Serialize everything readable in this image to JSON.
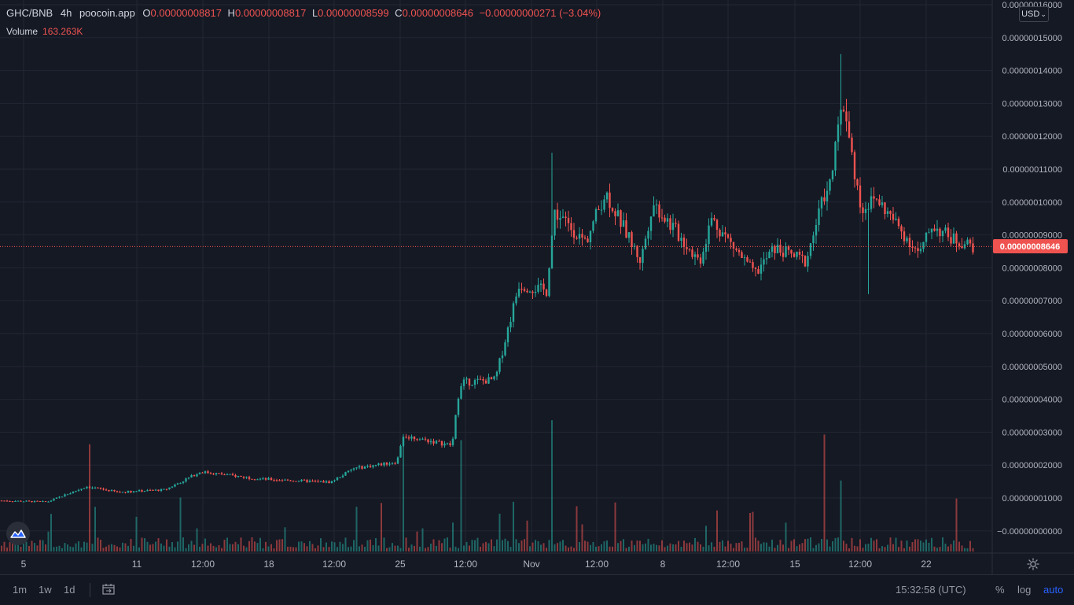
{
  "legend": {
    "symbol": "GHC/BNB",
    "timeframe": "4h",
    "source": "poocoin.app",
    "open_label": "O",
    "open": "0.00000008817",
    "high_label": "H",
    "high": "0.00000008817",
    "low_label": "L",
    "low": "0.00000008599",
    "close_label": "C",
    "close": "0.00000008646",
    "change": "−0.00000000271 (−3.04%)",
    "volume_label": "Volume",
    "volume_value": "163.263K"
  },
  "currency_button": "USD",
  "price_axis": {
    "labels": [
      "0.00000016000",
      "0.00000015000",
      "0.00000014000",
      "0.00000013000",
      "0.00000012000",
      "0.00000011000",
      "0.00000010000",
      "0.00000009000",
      "0.00000008000",
      "0.00000007000",
      "0.00000006000",
      "0.00000005000",
      "0.00000004000",
      "0.00000003000",
      "0.00000002000",
      "0.00000001000",
      "−0.00000000000"
    ],
    "current_price": "0.00000008646"
  },
  "time_axis": {
    "labels": [
      "5",
      "11",
      "12:00",
      "18",
      "12:00",
      "25",
      "12:00",
      "Nov",
      "12:00",
      "8",
      "12:00",
      "15",
      "12:00",
      "22"
    ]
  },
  "bottom_toolbar": {
    "intervals": [
      "1m",
      "1w",
      "1d"
    ],
    "clock": "15:32:58 (UTC)",
    "percent_label": "%",
    "log_label": "log",
    "auto_label": "auto"
  },
  "colors": {
    "background": "#151924",
    "up": "#26a69a",
    "down": "#ef5350",
    "grid": "#232632",
    "auto_active": "#2962ff"
  },
  "icons": {
    "logo": "tradingview-logo-icon",
    "settings": "gear-icon",
    "date_range": "calendar-range-icon",
    "currency_dropdown": "chevron-down-icon"
  },
  "chart_data": {
    "type": "candlestick",
    "pair": "GHC/BNB",
    "interval": "4h",
    "ylim": [
      -1e-08,
      1.6e-07
    ],
    "x_ticks": [
      "5",
      "11",
      "18",
      "25",
      "Nov",
      "8",
      "15",
      "22"
    ],
    "price_keypoints": [
      {
        "label": "5",
        "close": 9.2e-09
      },
      {
        "label": "11",
        "close": 1.07e-08
      },
      {
        "label": "18",
        "close": 1.58e-08
      },
      {
        "label": "25",
        "close": 2.6e-08
      },
      {
        "label": "Nov",
        "close": 6.8e-08
      },
      {
        "label": "8",
        "close": 9.8e-08
      },
      {
        "label": "15",
        "close": 8.5e-08
      },
      {
        "label": "22",
        "close": 9.4e-08
      },
      {
        "label": "last",
        "close": 8.646e-08
      }
    ],
    "max_high": 1.45e-07,
    "series": [
      {
        "name": "Volume",
        "last": "163.263K"
      }
    ]
  }
}
